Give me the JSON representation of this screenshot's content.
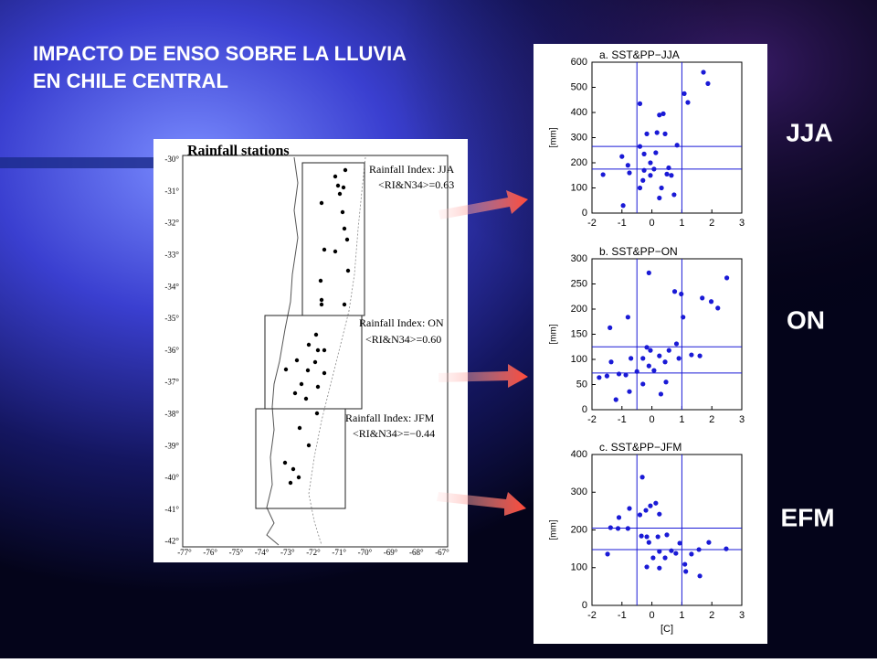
{
  "slide": {
    "title": [
      "IMPACTO DE ENSO SOBRE LA LLUVIA",
      "EN CHILE CENTRAL"
    ],
    "season_labels": [
      "JJA",
      "ON",
      "EFM"
    ]
  },
  "map": {
    "title": "Rainfall stations",
    "lat_labels": [
      "-30°",
      "-31°",
      "-32°",
      "-33°",
      "-34°",
      "-35°",
      "-36°",
      "-37°",
      "-38°",
      "-39°",
      "-40°",
      "-41°",
      "-42°"
    ],
    "lon_labels": [
      "-77°",
      "-76°",
      "-75°",
      "-74°",
      "-73°",
      "-72°",
      "-71°",
      "-70°",
      "-69°",
      "-68°",
      "-67°"
    ],
    "regions": [
      {
        "label": "Rainfall Index: JJA",
        "correlation": "<RI&N34>=0.63"
      },
      {
        "label": "Rainfall Index: ON",
        "correlation": "<RI&N34>=0.60"
      },
      {
        "label": "Rainfall Index: JFM",
        "correlation": "<RI&N34>=−0.44"
      }
    ]
  },
  "chart_data": [
    {
      "type": "scatter",
      "title": "a. SST&PP−JJA",
      "y_label": "[mm]",
      "color": "#1a1ad6",
      "xlim": [
        -2,
        3
      ],
      "xticks": [
        -2,
        -1,
        0,
        1,
        2,
        3
      ],
      "ylim": [
        0,
        600
      ],
      "yticks": [
        0,
        100,
        200,
        300,
        400,
        500,
        600
      ],
      "reference_x": [
        -0.5,
        1
      ],
      "reference_y": [
        265,
        175
      ],
      "x": [
        1.08,
        1.2,
        1.72,
        1.87,
        -0.4,
        0.25,
        0.38,
        -0.17,
        0.17,
        0.44,
        0.84,
        -0.4,
        -1.0,
        -1.63,
        -0.8,
        -0.26,
        -0.05,
        0.07,
        -0.05,
        -0.26,
        0.5,
        0.56,
        0.65,
        0.32,
        -0.4,
        -0.3,
        0.74,
        0.25,
        -0.96,
        -0.75,
        0.13
      ],
      "values": [
        475,
        440,
        560,
        515,
        435,
        390,
        395,
        315,
        320,
        315,
        270,
        265,
        225,
        153,
        190,
        235,
        200,
        175,
        150,
        170,
        155,
        180,
        150,
        100,
        100,
        130,
        73,
        60,
        30,
        160,
        240
      ]
    },
    {
      "type": "scatter",
      "title": "b. SST&PP−ON",
      "y_label": "[mm]",
      "color": "#1a1ad6",
      "xlim": [
        -2,
        3
      ],
      "xticks": [
        -2,
        -1,
        0,
        1,
        2,
        3
      ],
      "ylim": [
        0,
        300
      ],
      "yticks": [
        0,
        50,
        100,
        150,
        200,
        250,
        300
      ],
      "reference_x": [
        -0.5,
        1
      ],
      "reference_y": [
        125,
        73
      ],
      "x": [
        2.5,
        -0.1,
        0.76,
        0.98,
        1.68,
        1.98,
        2.2,
        1.04,
        -0.8,
        -1.4,
        0.82,
        -0.17,
        -0.05,
        0.57,
        1.32,
        1.6,
        0.9,
        0.25,
        -0.7,
        -1.36,
        -0.3,
        0.44,
        -0.1,
        0.07,
        -0.5,
        -0.87,
        -1.1,
        -1.76,
        -1.5,
        -0.3,
        0.47,
        -0.75,
        -1.2,
        0.3
      ],
      "values": [
        262,
        272,
        235,
        230,
        222,
        215,
        202,
        184,
        184,
        163,
        131,
        124,
        118,
        118,
        109,
        107,
        102,
        107,
        102,
        95,
        102,
        95,
        87,
        78,
        76,
        69,
        71,
        64,
        67,
        51,
        55,
        36,
        20,
        31
      ]
    },
    {
      "type": "scatter",
      "title": "c. SST&PP−JFM",
      "y_label": "[mm]",
      "x_label": "[C]",
      "color": "#1a1ad6",
      "xlim": [
        -2,
        3
      ],
      "xticks": [
        -2,
        -1,
        0,
        1,
        2,
        3
      ],
      "ylim": [
        0,
        400
      ],
      "yticks": [
        0,
        100,
        200,
        300,
        400
      ],
      "reference_x": [
        -0.5,
        1
      ],
      "reference_y": [
        205,
        148
      ],
      "x": [
        -0.32,
        -0.75,
        -0.05,
        0.13,
        -0.2,
        -0.4,
        0.25,
        -1.1,
        -1.38,
        -1.13,
        -0.8,
        -0.35,
        -0.17,
        0.2,
        0.5,
        -0.1,
        0.93,
        1.9,
        1.57,
        2.48,
        0.65,
        0.25,
        0.8,
        0.04,
        0.44,
        1.32,
        -1.48,
        -0.17,
        0.25,
        1.1,
        1.13,
        1.6
      ],
      "values": [
        340,
        257,
        264,
        271,
        252,
        240,
        242,
        233,
        206,
        204,
        204,
        184,
        182,
        182,
        187,
        167,
        165,
        167,
        148,
        150,
        145,
        143,
        138,
        126,
        126,
        136,
        136,
        102,
        99,
        109,
        90,
        78
      ]
    }
  ]
}
